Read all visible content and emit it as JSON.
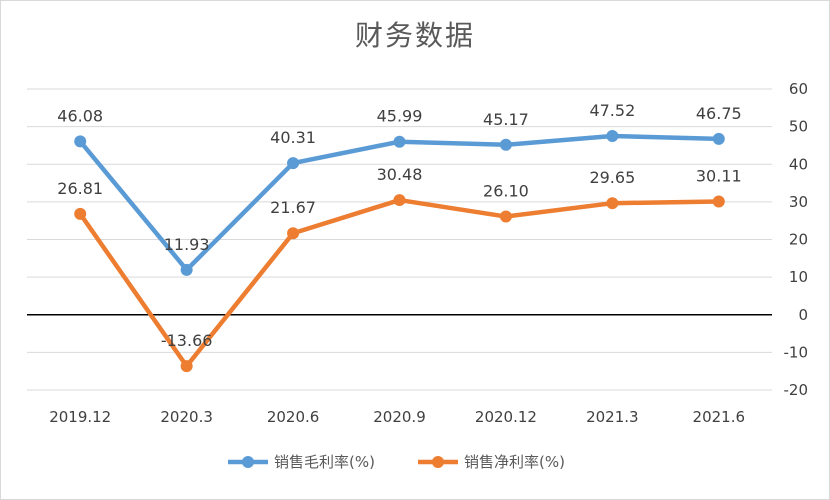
{
  "chart_data": {
    "type": "line",
    "title": "财务数据",
    "categories": [
      "2019.12",
      "2020.3",
      "2020.6",
      "2020.9",
      "2020.12",
      "2021.3",
      "2021.6"
    ],
    "series": [
      {
        "name": "销售毛利率(%)",
        "color": "#5b9bd5",
        "values": [
          46.08,
          11.93,
          40.31,
          45.99,
          45.17,
          47.52,
          46.75
        ]
      },
      {
        "name": "销售净利率(%)",
        "color": "#ed7d31",
        "values": [
          26.81,
          -13.66,
          21.67,
          30.48,
          26.1,
          29.65,
          30.11
        ]
      }
    ],
    "data_labels": [
      [
        "46.08",
        "11.93",
        "40.31",
        "45.99",
        "45.17",
        "47.52",
        "46.75"
      ],
      [
        "26.81",
        "-13.66",
        "21.67",
        "30.48",
        "26.10",
        "29.65",
        "30.11"
      ]
    ],
    "y_axis_side": "right",
    "ylim": [
      -20,
      60
    ],
    "yticks": [
      60,
      50,
      40,
      30,
      20,
      10,
      0,
      -10,
      -20
    ],
    "grid": true,
    "legend": "bottom",
    "xlabel": "",
    "ylabel": ""
  }
}
